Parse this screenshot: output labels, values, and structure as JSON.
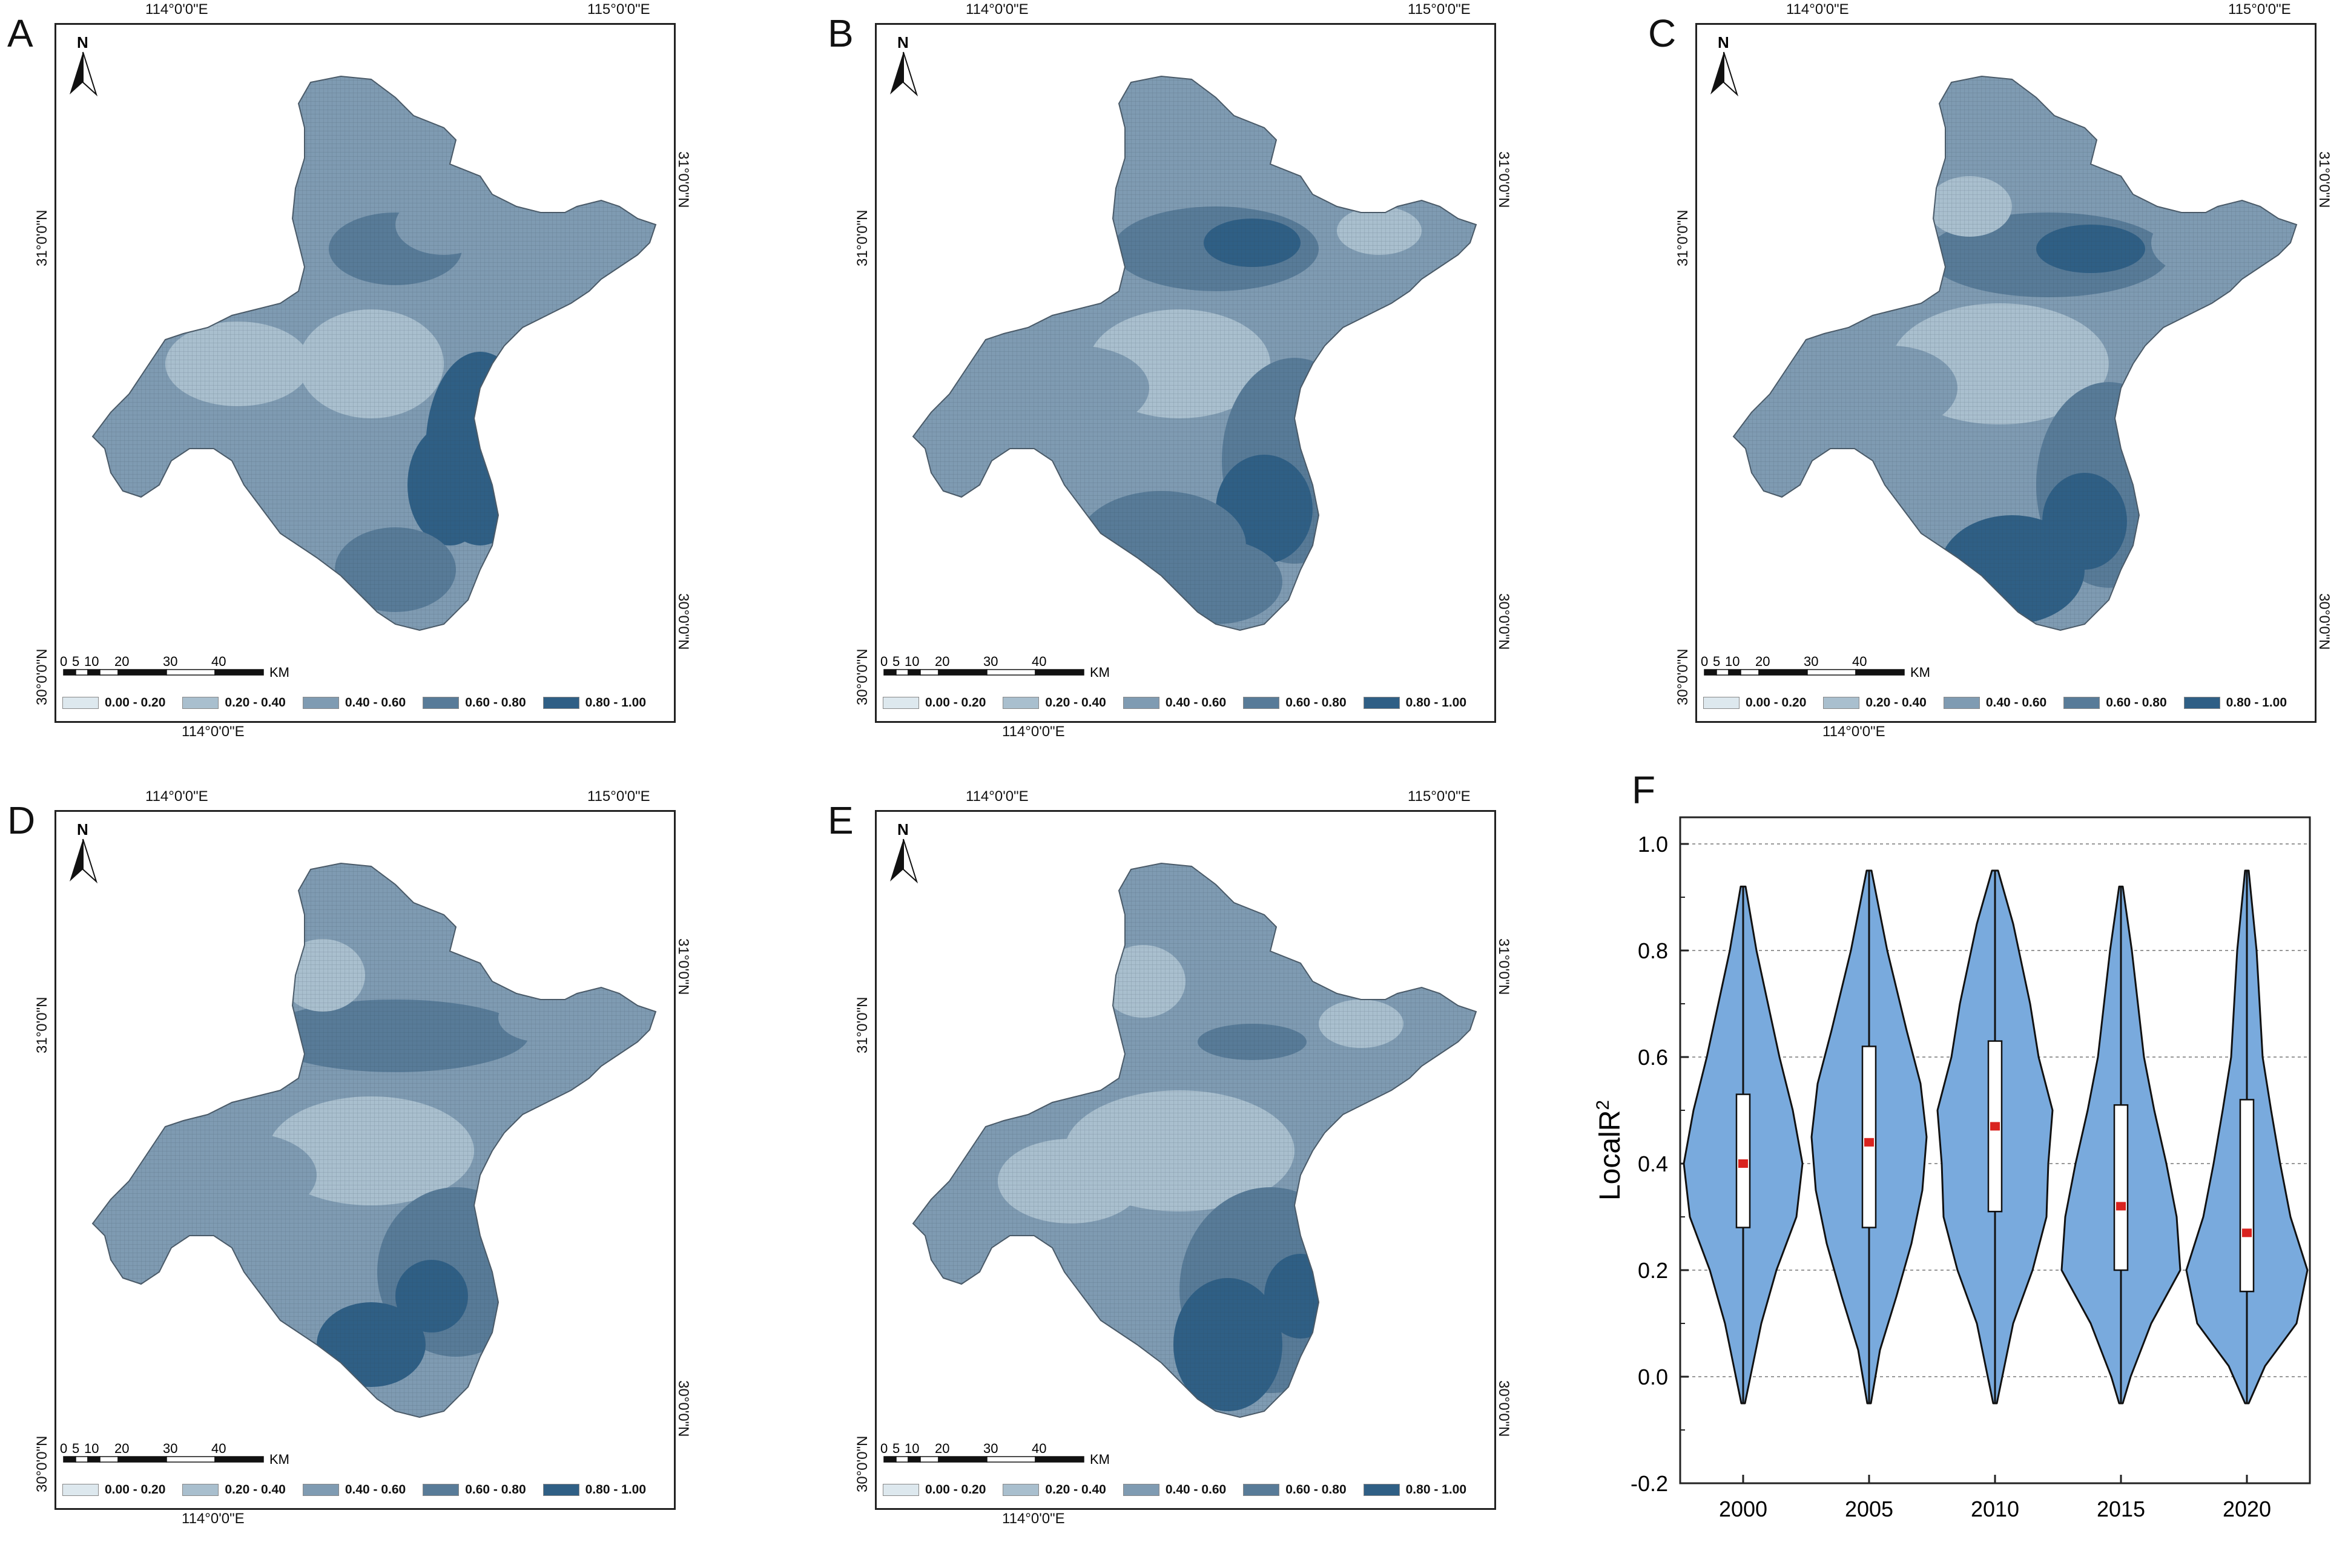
{
  "panels": [
    {
      "label": "A",
      "lon_top": [
        "114°0'0\"E",
        "115°0'0\"E"
      ],
      "lon_bottom": "114°0'0\"E",
      "lat_left": [
        "31°0'0\"N",
        "30°0'0\"N"
      ],
      "lat_right": [
        "31°0'0\"N",
        "30°0'0\"N"
      ]
    },
    {
      "label": "B",
      "lon_top": [
        "114°0'0\"E",
        "115°0'0\"E"
      ],
      "lon_bottom": "114°0'0\"E",
      "lat_left": [
        "31°0'0\"N",
        "30°0'0\"N"
      ],
      "lat_right": [
        "31°0'0\"N",
        "30°0'0\"N"
      ]
    },
    {
      "label": "C",
      "lon_top": [
        "114°0'0\"E",
        "115°0'0\"E"
      ],
      "lon_bottom": "114°0'0\"E",
      "lat_left": [
        "31°0'0\"N",
        "30°0'0\"N"
      ],
      "lat_right": [
        "31°0'0\"N",
        "30°0'0\"N"
      ]
    },
    {
      "label": "D",
      "lon_top": [
        "114°0'0\"E",
        "115°0'0\"E"
      ],
      "lon_bottom": "114°0'0\"E",
      "lat_left": [
        "31°0'0\"N",
        "30°0'0\"N"
      ],
      "lat_right": [
        "31°0'0\"N",
        "30°0'0\"N"
      ]
    },
    {
      "label": "E",
      "lon_top": [
        "114°0'0\"E",
        "115°0'0\"E"
      ],
      "lon_bottom": "114°0'0\"E",
      "lat_left": [
        "31°0'0\"N",
        "30°0'0\"N"
      ],
      "lat_right": [
        "31°0'0\"N",
        "30°0'0\"N"
      ]
    }
  ],
  "north_label": "N",
  "scale_bar": {
    "ticks": [
      "0",
      "5",
      "10",
      "20",
      "30",
      "40"
    ],
    "unit": "KM"
  },
  "legend": [
    {
      "range": "0.00 - 0.20",
      "color": "#dde8ee"
    },
    {
      "range": "0.20 - 0.40",
      "color": "#a9bfce"
    },
    {
      "range": "0.40 - 0.60",
      "color": "#7f9bb2"
    },
    {
      "range": "0.60 - 0.80",
      "color": "#587b98"
    },
    {
      "range": "0.80 - 1.00",
      "color": "#2f5f85"
    }
  ],
  "violin_panel_label": "F",
  "chart_data": {
    "type": "violin",
    "title": "",
    "xlabel": "",
    "ylabel": "LocalR",
    "ylabel_superscript": "2",
    "categories": [
      "2000",
      "2005",
      "2010",
      "2015",
      "2020"
    ],
    "ylim": [
      -0.2,
      1.05
    ],
    "yticks": [
      "1.0",
      "0.8",
      "0.6",
      "0.4",
      "0.2",
      "0.0",
      "-0.2"
    ],
    "ytick_values": [
      1.0,
      0.8,
      0.6,
      0.4,
      0.2,
      0.0,
      -0.2
    ],
    "grid": "horizontal dashed",
    "fill_color": "#79aadd",
    "median_color": "#d9231f",
    "series": [
      {
        "name": "2000",
        "min": -0.05,
        "q1": 0.28,
        "median": 0.4,
        "q3": 0.53,
        "max": 0.92
      },
      {
        "name": "2005",
        "min": -0.05,
        "q1": 0.28,
        "median": 0.44,
        "q3": 0.62,
        "max": 0.95
      },
      {
        "name": "2010",
        "min": -0.05,
        "q1": 0.31,
        "median": 0.47,
        "q3": 0.63,
        "max": 0.95
      },
      {
        "name": "2015",
        "min": -0.05,
        "q1": 0.2,
        "median": 0.32,
        "q3": 0.51,
        "max": 0.92
      },
      {
        "name": "2020",
        "min": -0.05,
        "q1": 0.16,
        "median": 0.27,
        "q3": 0.52,
        "max": 0.95
      }
    ]
  }
}
